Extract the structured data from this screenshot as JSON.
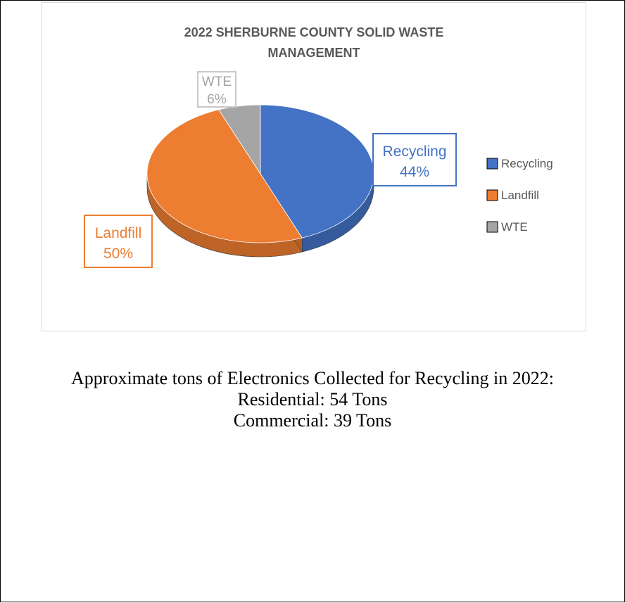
{
  "chart_data": {
    "type": "pie",
    "title_lines": [
      "2022 SHERBURNE COUNTY SOLID WASTE",
      "MANAGEMENT"
    ],
    "slices": [
      {
        "label": "Recycling",
        "value": 44,
        "value_label": "44%",
        "color": "#4472c4"
      },
      {
        "label": "Landfill",
        "value": 50,
        "value_label": "50%",
        "color": "#ed7d31"
      },
      {
        "label": "WTE",
        "value": 6,
        "value_label": "6%",
        "color": "#a5a5a5"
      }
    ],
    "legend": [
      "Recycling",
      "Landfill",
      "WTE"
    ],
    "legend_position": "right"
  },
  "caption": {
    "line1": "Approximate tons of Electronics Collected for Recycling in 2022:",
    "line2": "Residential: 54 Tons",
    "line3": "Commercial: 39 Tons"
  }
}
